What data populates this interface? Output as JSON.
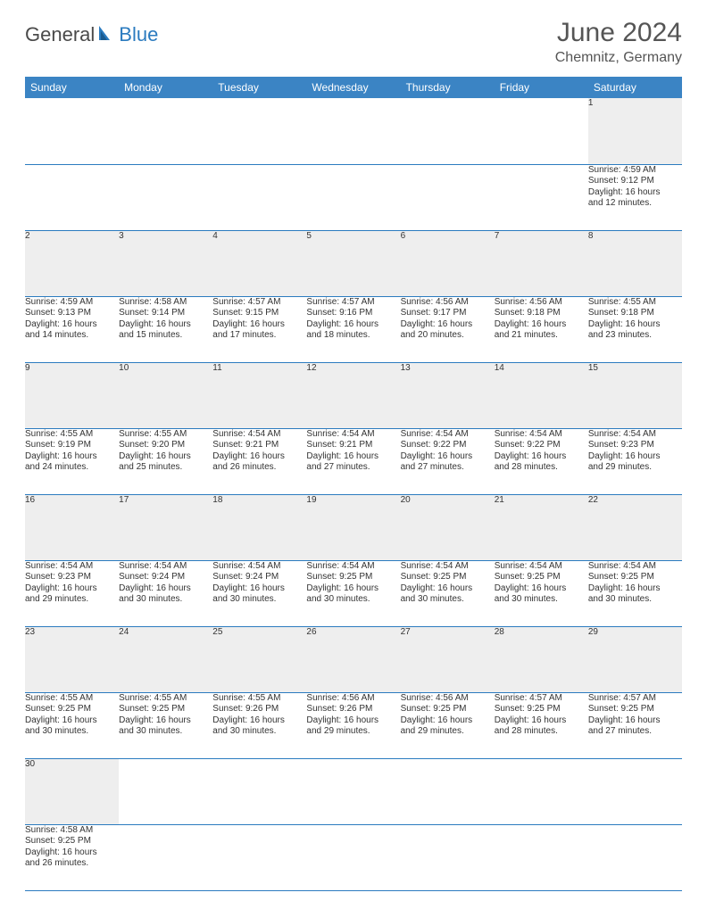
{
  "logo": {
    "part1": "General",
    "part2": "Blue"
  },
  "title": "June 2024",
  "location": "Chemnitz, Germany",
  "colors": {
    "header_bg": "#3b84c4",
    "header_text": "#ffffff",
    "daynum_bg": "#eeeeee",
    "border": "#2b7bbf",
    "text": "#333333",
    "logo_gray": "#4a4a4a",
    "logo_blue": "#2b7bbf"
  },
  "weekdays": [
    "Sunday",
    "Monday",
    "Tuesday",
    "Wednesday",
    "Thursday",
    "Friday",
    "Saturday"
  ],
  "weeks": [
    [
      null,
      null,
      null,
      null,
      null,
      null,
      {
        "d": "1",
        "sr": "Sunrise: 4:59 AM",
        "ss": "Sunset: 9:12 PM",
        "dl1": "Daylight: 16 hours",
        "dl2": "and 12 minutes."
      }
    ],
    [
      {
        "d": "2",
        "sr": "Sunrise: 4:59 AM",
        "ss": "Sunset: 9:13 PM",
        "dl1": "Daylight: 16 hours",
        "dl2": "and 14 minutes."
      },
      {
        "d": "3",
        "sr": "Sunrise: 4:58 AM",
        "ss": "Sunset: 9:14 PM",
        "dl1": "Daylight: 16 hours",
        "dl2": "and 15 minutes."
      },
      {
        "d": "4",
        "sr": "Sunrise: 4:57 AM",
        "ss": "Sunset: 9:15 PM",
        "dl1": "Daylight: 16 hours",
        "dl2": "and 17 minutes."
      },
      {
        "d": "5",
        "sr": "Sunrise: 4:57 AM",
        "ss": "Sunset: 9:16 PM",
        "dl1": "Daylight: 16 hours",
        "dl2": "and 18 minutes."
      },
      {
        "d": "6",
        "sr": "Sunrise: 4:56 AM",
        "ss": "Sunset: 9:17 PM",
        "dl1": "Daylight: 16 hours",
        "dl2": "and 20 minutes."
      },
      {
        "d": "7",
        "sr": "Sunrise: 4:56 AM",
        "ss": "Sunset: 9:18 PM",
        "dl1": "Daylight: 16 hours",
        "dl2": "and 21 minutes."
      },
      {
        "d": "8",
        "sr": "Sunrise: 4:55 AM",
        "ss": "Sunset: 9:18 PM",
        "dl1": "Daylight: 16 hours",
        "dl2": "and 23 minutes."
      }
    ],
    [
      {
        "d": "9",
        "sr": "Sunrise: 4:55 AM",
        "ss": "Sunset: 9:19 PM",
        "dl1": "Daylight: 16 hours",
        "dl2": "and 24 minutes."
      },
      {
        "d": "10",
        "sr": "Sunrise: 4:55 AM",
        "ss": "Sunset: 9:20 PM",
        "dl1": "Daylight: 16 hours",
        "dl2": "and 25 minutes."
      },
      {
        "d": "11",
        "sr": "Sunrise: 4:54 AM",
        "ss": "Sunset: 9:21 PM",
        "dl1": "Daylight: 16 hours",
        "dl2": "and 26 minutes."
      },
      {
        "d": "12",
        "sr": "Sunrise: 4:54 AM",
        "ss": "Sunset: 9:21 PM",
        "dl1": "Daylight: 16 hours",
        "dl2": "and 27 minutes."
      },
      {
        "d": "13",
        "sr": "Sunrise: 4:54 AM",
        "ss": "Sunset: 9:22 PM",
        "dl1": "Daylight: 16 hours",
        "dl2": "and 27 minutes."
      },
      {
        "d": "14",
        "sr": "Sunrise: 4:54 AM",
        "ss": "Sunset: 9:22 PM",
        "dl1": "Daylight: 16 hours",
        "dl2": "and 28 minutes."
      },
      {
        "d": "15",
        "sr": "Sunrise: 4:54 AM",
        "ss": "Sunset: 9:23 PM",
        "dl1": "Daylight: 16 hours",
        "dl2": "and 29 minutes."
      }
    ],
    [
      {
        "d": "16",
        "sr": "Sunrise: 4:54 AM",
        "ss": "Sunset: 9:23 PM",
        "dl1": "Daylight: 16 hours",
        "dl2": "and 29 minutes."
      },
      {
        "d": "17",
        "sr": "Sunrise: 4:54 AM",
        "ss": "Sunset: 9:24 PM",
        "dl1": "Daylight: 16 hours",
        "dl2": "and 30 minutes."
      },
      {
        "d": "18",
        "sr": "Sunrise: 4:54 AM",
        "ss": "Sunset: 9:24 PM",
        "dl1": "Daylight: 16 hours",
        "dl2": "and 30 minutes."
      },
      {
        "d": "19",
        "sr": "Sunrise: 4:54 AM",
        "ss": "Sunset: 9:25 PM",
        "dl1": "Daylight: 16 hours",
        "dl2": "and 30 minutes."
      },
      {
        "d": "20",
        "sr": "Sunrise: 4:54 AM",
        "ss": "Sunset: 9:25 PM",
        "dl1": "Daylight: 16 hours",
        "dl2": "and 30 minutes."
      },
      {
        "d": "21",
        "sr": "Sunrise: 4:54 AM",
        "ss": "Sunset: 9:25 PM",
        "dl1": "Daylight: 16 hours",
        "dl2": "and 30 minutes."
      },
      {
        "d": "22",
        "sr": "Sunrise: 4:54 AM",
        "ss": "Sunset: 9:25 PM",
        "dl1": "Daylight: 16 hours",
        "dl2": "and 30 minutes."
      }
    ],
    [
      {
        "d": "23",
        "sr": "Sunrise: 4:55 AM",
        "ss": "Sunset: 9:25 PM",
        "dl1": "Daylight: 16 hours",
        "dl2": "and 30 minutes."
      },
      {
        "d": "24",
        "sr": "Sunrise: 4:55 AM",
        "ss": "Sunset: 9:25 PM",
        "dl1": "Daylight: 16 hours",
        "dl2": "and 30 minutes."
      },
      {
        "d": "25",
        "sr": "Sunrise: 4:55 AM",
        "ss": "Sunset: 9:26 PM",
        "dl1": "Daylight: 16 hours",
        "dl2": "and 30 minutes."
      },
      {
        "d": "26",
        "sr": "Sunrise: 4:56 AM",
        "ss": "Sunset: 9:26 PM",
        "dl1": "Daylight: 16 hours",
        "dl2": "and 29 minutes."
      },
      {
        "d": "27",
        "sr": "Sunrise: 4:56 AM",
        "ss": "Sunset: 9:25 PM",
        "dl1": "Daylight: 16 hours",
        "dl2": "and 29 minutes."
      },
      {
        "d": "28",
        "sr": "Sunrise: 4:57 AM",
        "ss": "Sunset: 9:25 PM",
        "dl1": "Daylight: 16 hours",
        "dl2": "and 28 minutes."
      },
      {
        "d": "29",
        "sr": "Sunrise: 4:57 AM",
        "ss": "Sunset: 9:25 PM",
        "dl1": "Daylight: 16 hours",
        "dl2": "and 27 minutes."
      }
    ],
    [
      {
        "d": "30",
        "sr": "Sunrise: 4:58 AM",
        "ss": "Sunset: 9:25 PM",
        "dl1": "Daylight: 16 hours",
        "dl2": "and 26 minutes."
      },
      null,
      null,
      null,
      null,
      null,
      null
    ]
  ]
}
